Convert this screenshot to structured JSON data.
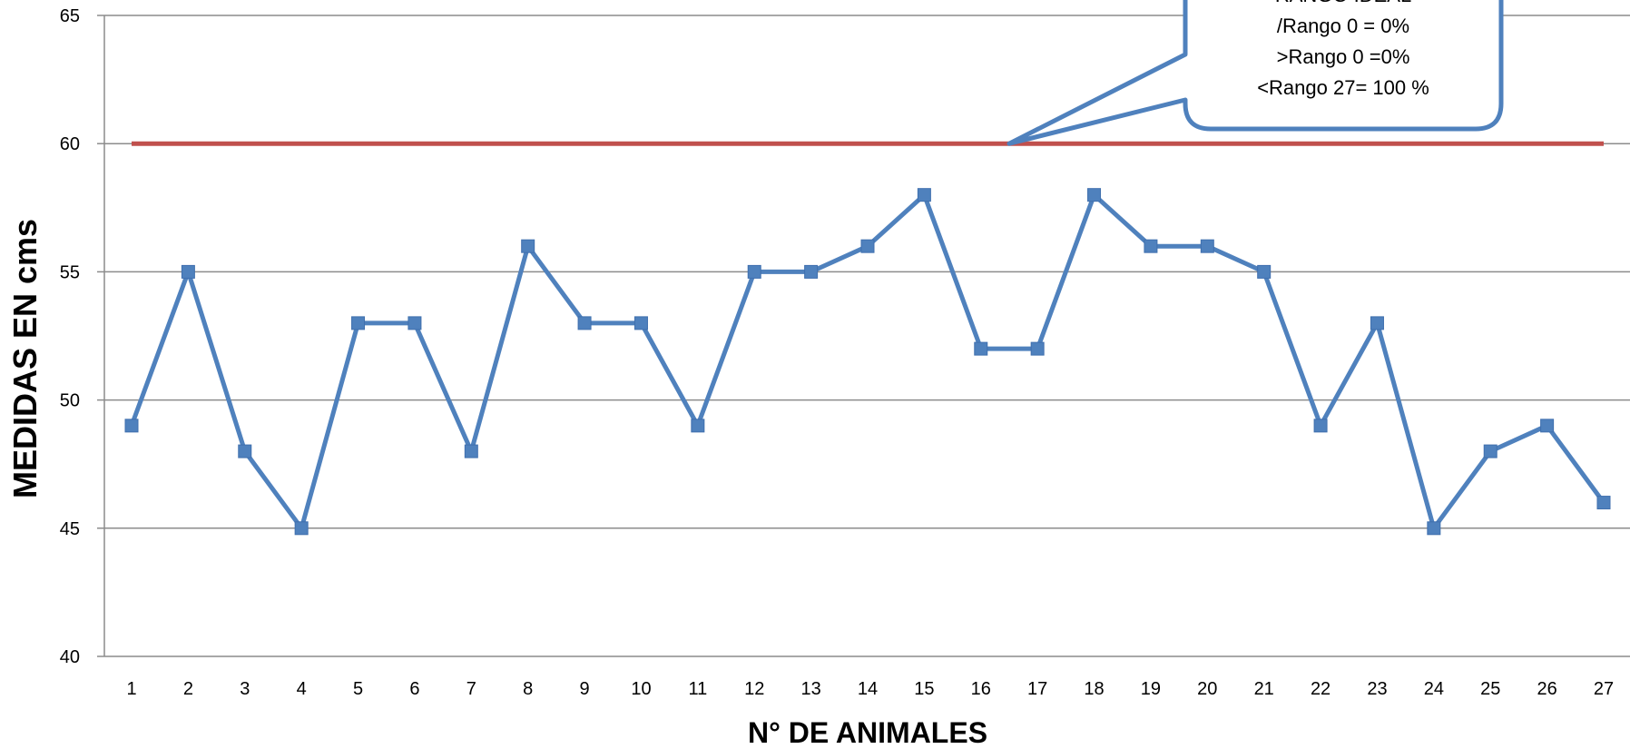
{
  "chart_data": {
    "type": "line",
    "title": "",
    "xlabel": "N° DE ANIMALES",
    "ylabel": "MEDIDAS EN  cms",
    "ylim": [
      40,
      65
    ],
    "yticks": [
      40,
      45,
      50,
      55,
      60,
      65
    ],
    "grid": true,
    "categories": [
      "1",
      "2",
      "3",
      "4",
      "5",
      "6",
      "7",
      "8",
      "9",
      "10",
      "11",
      "12",
      "13",
      "14",
      "15",
      "16",
      "17",
      "18",
      "19",
      "20",
      "21",
      "22",
      "23",
      "24",
      "25",
      "26",
      "27"
    ],
    "series": [
      {
        "values": [
          49,
          55,
          48,
          45,
          53,
          53,
          48,
          56,
          53,
          53,
          49,
          55,
          55,
          56,
          58,
          52,
          52,
          58,
          56,
          56,
          55,
          49,
          53,
          45,
          48,
          49,
          46
        ],
        "color": "#4F81BD",
        "marker": "square"
      },
      {
        "values": [
          60,
          60,
          60,
          60,
          60,
          60,
          60,
          60,
          60,
          60,
          60,
          60,
          60,
          60,
          60,
          60,
          60,
          60,
          60,
          60,
          60,
          60,
          60,
          60,
          60,
          60,
          60
        ],
        "color": "#C0504D",
        "marker": "none"
      }
    ],
    "annotation": {
      "lines": [
        "RANGO IDEAL",
        "/Rango  0 = 0%",
        ">Rango 0 =0%",
        "<Rango 27= 100 %"
      ],
      "border_color": "#4F81BD",
      "pointer_x": 16.5,
      "pointer_y": 60
    }
  }
}
